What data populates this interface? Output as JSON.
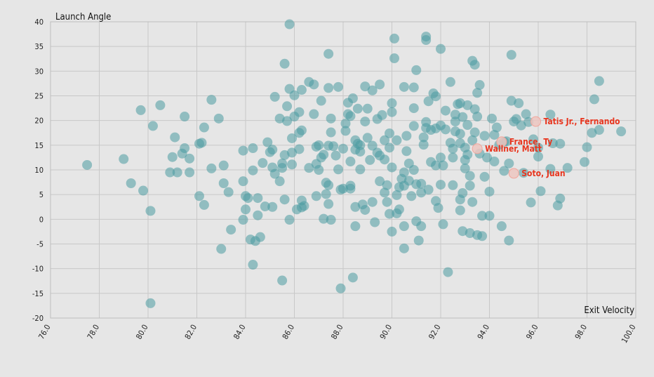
{
  "chart_data": {
    "type": "scatter",
    "xlabel": "Exit Velocity",
    "ylabel": "Launch Angle",
    "xlim": [
      76,
      100
    ],
    "ylim": [
      -20,
      40
    ],
    "xticks": [
      "76.0",
      "78.0",
      "80.0",
      "82.0",
      "84.0",
      "86.0",
      "88.0",
      "90.0",
      "92.0",
      "94.0",
      "96.0",
      "98.0",
      "100.0"
    ],
    "yticks": [
      "40",
      "35",
      "30",
      "25",
      "20",
      "15",
      "10",
      "5",
      "0",
      "-5",
      "-10",
      "-15",
      "-20"
    ],
    "grid": true,
    "colors": {
      "points": "#4a9aa0",
      "highlight": "#e8351e",
      "highlight_fill": "#ecc5c0"
    },
    "highlighted": [
      {
        "name": "Tatis Jr., Fernando",
        "x": 95.9,
        "y": 19.8
      },
      {
        "name": "France, Ty",
        "x": 94.5,
        "y": 15.7
      },
      {
        "name": "Wallner, Matt",
        "x": 93.5,
        "y": 14.3
      },
      {
        "name": "Soto, Juan",
        "x": 95.0,
        "y": 9.3
      }
    ],
    "points": [
      [
        77.5,
        11.0
      ],
      [
        79.0,
        12.2
      ],
      [
        79.3,
        7.3
      ],
      [
        79.7,
        22.1
      ],
      [
        79.8,
        5.8
      ],
      [
        80.1,
        1.7
      ],
      [
        80.1,
        -17.0
      ],
      [
        80.2,
        18.9
      ],
      [
        80.5,
        23.1
      ],
      [
        80.9,
        9.5
      ],
      [
        81.0,
        12.6
      ],
      [
        81.1,
        16.6
      ],
      [
        81.2,
        9.5
      ],
      [
        81.4,
        13.3
      ],
      [
        81.5,
        14.4
      ],
      [
        81.5,
        20.8
      ],
      [
        81.7,
        12.3
      ],
      [
        81.7,
        9.5
      ],
      [
        82.1,
        15.3
      ],
      [
        82.1,
        4.7
      ],
      [
        82.2,
        15.5
      ],
      [
        82.3,
        18.6
      ],
      [
        82.3,
        2.9
      ],
      [
        82.6,
        24.2
      ],
      [
        82.6,
        10.3
      ],
      [
        82.9,
        20.4
      ],
      [
        83.0,
        -6.0
      ],
      [
        83.1,
        10.9
      ],
      [
        83.1,
        7.3
      ],
      [
        83.3,
        5.5
      ],
      [
        83.4,
        -2.1
      ],
      [
        83.9,
        13.9
      ],
      [
        83.9,
        7.7
      ],
      [
        83.9,
        -0.1
      ],
      [
        84.0,
        4.7
      ],
      [
        84.0,
        2.0
      ],
      [
        84.1,
        4.3
      ],
      [
        84.2,
        -4.1
      ],
      [
        84.3,
        14.4
      ],
      [
        84.3,
        9.9
      ],
      [
        84.3,
        -9.2
      ],
      [
        84.4,
        -4.4
      ],
      [
        84.5,
        0.8
      ],
      [
        84.5,
        4.3
      ],
      [
        84.6,
        -3.6
      ],
      [
        84.7,
        11.4
      ],
      [
        84.8,
        2.6
      ],
      [
        84.9,
        15.6
      ],
      [
        85.0,
        13.6
      ],
      [
        85.1,
        14.1
      ],
      [
        85.1,
        2.5
      ],
      [
        85.1,
        10.5
      ],
      [
        85.2,
        24.8
      ],
      [
        85.2,
        9.2
      ],
      [
        85.4,
        20.4
      ],
      [
        85.4,
        7.7
      ],
      [
        85.5,
        11.3
      ],
      [
        85.5,
        10.4
      ],
      [
        85.5,
        -12.4
      ],
      [
        85.6,
        31.5
      ],
      [
        85.6,
        13.0
      ],
      [
        85.6,
        4.0
      ],
      [
        85.7,
        22.9
      ],
      [
        85.7,
        19.9
      ],
      [
        85.8,
        39.5
      ],
      [
        85.8,
        26.4
      ],
      [
        85.8,
        -0.1
      ],
      [
        85.9,
        16.4
      ],
      [
        85.9,
        13.5
      ],
      [
        85.9,
        11.1
      ],
      [
        86.0,
        25.1
      ],
      [
        86.0,
        20.8
      ],
      [
        86.1,
        2.0
      ],
      [
        86.2,
        21.7
      ],
      [
        86.2,
        17.5
      ],
      [
        86.2,
        14.2
      ],
      [
        86.3,
        26.2
      ],
      [
        86.3,
        18.0
      ],
      [
        86.3,
        3.8
      ],
      [
        86.3,
        2.4
      ],
      [
        86.4,
        2.7
      ],
      [
        86.6,
        10.4
      ],
      [
        86.6,
        27.8
      ],
      [
        86.8,
        27.3
      ],
      [
        86.8,
        21.3
      ],
      [
        86.9,
        14.7
      ],
      [
        86.9,
        11.2
      ],
      [
        86.9,
        4.7
      ],
      [
        87.0,
        10.0
      ],
      [
        87.0,
        15.0
      ],
      [
        87.1,
        12.5
      ],
      [
        87.1,
        24.0
      ],
      [
        87.2,
        13.1
      ],
      [
        87.2,
        0.1
      ],
      [
        87.3,
        7.4
      ],
      [
        87.3,
        5.1
      ],
      [
        87.4,
        26.6
      ],
      [
        87.4,
        33.5
      ],
      [
        87.4,
        14.9
      ],
      [
        87.4,
        6.9
      ],
      [
        87.4,
        3.1
      ],
      [
        87.5,
        20.4
      ],
      [
        87.5,
        17.6
      ],
      [
        87.5,
        -0.1
      ],
      [
        87.6,
        14.8
      ],
      [
        87.7,
        12.9
      ],
      [
        87.8,
        26.8
      ],
      [
        87.8,
        10.1
      ],
      [
        87.9,
        6.0
      ],
      [
        87.9,
        -14.0
      ],
      [
        88.0,
        14.3
      ],
      [
        88.0,
        6.2
      ],
      [
        88.1,
        19.4
      ],
      [
        88.1,
        17.9
      ],
      [
        88.2,
        23.6
      ],
      [
        88.2,
        21.3
      ],
      [
        88.3,
        20.9
      ],
      [
        88.3,
        11.7
      ],
      [
        88.3,
        6.2
      ],
      [
        88.3,
        6.8
      ],
      [
        88.4,
        24.5
      ],
      [
        88.4,
        -11.8
      ],
      [
        88.5,
        14.1
      ],
      [
        88.5,
        16.0
      ],
      [
        88.5,
        -1.4
      ],
      [
        88.5,
        2.5
      ],
      [
        88.6,
        22.4
      ],
      [
        88.6,
        15.3
      ],
      [
        88.7,
        13.7
      ],
      [
        88.7,
        15.0
      ],
      [
        88.7,
        10.1
      ],
      [
        88.8,
        3.0
      ],
      [
        88.9,
        19.8
      ],
      [
        88.9,
        26.9
      ],
      [
        88.9,
        1.9
      ],
      [
        89.0,
        22.4
      ],
      [
        89.0,
        16.5
      ],
      [
        89.1,
        12.0
      ],
      [
        89.2,
        26.1
      ],
      [
        89.2,
        14.9
      ],
      [
        89.2,
        3.5
      ],
      [
        89.3,
        -0.6
      ],
      [
        89.4,
        20.3
      ],
      [
        89.4,
        13.5
      ],
      [
        89.5,
        27.3
      ],
      [
        89.5,
        12.9
      ],
      [
        89.5,
        7.7
      ],
      [
        89.6,
        21.1
      ],
      [
        89.7,
        16.0
      ],
      [
        89.7,
        12.1
      ],
      [
        89.7,
        5.4
      ],
      [
        89.8,
        3.5
      ],
      [
        89.8,
        6.9
      ],
      [
        89.9,
        1.1
      ],
      [
        89.9,
        17.4
      ],
      [
        89.9,
        14.5
      ],
      [
        90.0,
        -2.5
      ],
      [
        90.0,
        21.7
      ],
      [
        90.0,
        23.5
      ],
      [
        90.0,
        10.5
      ],
      [
        90.1,
        32.6
      ],
      [
        90.1,
        36.6
      ],
      [
        90.2,
        4.9
      ],
      [
        90.2,
        1.2
      ],
      [
        90.2,
        16.0
      ],
      [
        90.3,
        2.0
      ],
      [
        90.3,
        6.5
      ],
      [
        90.4,
        8.2
      ],
      [
        90.5,
        6.8
      ],
      [
        90.5,
        -1.4
      ],
      [
        90.5,
        -5.9
      ],
      [
        90.5,
        9.5
      ],
      [
        90.5,
        26.8
      ],
      [
        90.6,
        16.9
      ],
      [
        90.6,
        13.8
      ],
      [
        90.7,
        11.3
      ],
      [
        90.7,
        7.8
      ],
      [
        90.8,
        4.7
      ],
      [
        90.9,
        10.0
      ],
      [
        90.9,
        26.7
      ],
      [
        90.9,
        22.5
      ],
      [
        90.9,
        18.9
      ],
      [
        91.0,
        7.1
      ],
      [
        91.0,
        -0.4
      ],
      [
        91.0,
        30.2
      ],
      [
        91.1,
        -4.3
      ],
      [
        91.2,
        -1.4
      ],
      [
        91.2,
        5.4
      ],
      [
        91.2,
        7.2
      ],
      [
        91.3,
        15.1
      ],
      [
        91.3,
        16.6
      ],
      [
        91.4,
        19.7
      ],
      [
        91.4,
        18.5
      ],
      [
        91.4,
        37.0
      ],
      [
        91.4,
        36.3
      ],
      [
        91.5,
        23.9
      ],
      [
        91.5,
        6.0
      ],
      [
        91.6,
        11.6
      ],
      [
        91.6,
        18.1
      ],
      [
        91.7,
        25.5
      ],
      [
        91.8,
        24.9
      ],
      [
        91.8,
        18.4
      ],
      [
        91.8,
        10.9
      ],
      [
        91.8,
        3.7
      ],
      [
        91.9,
        2.3
      ],
      [
        92.0,
        34.5
      ],
      [
        92.0,
        19.0
      ],
      [
        92.0,
        12.5
      ],
      [
        92.0,
        7.0
      ],
      [
        92.1,
        -1.0
      ],
      [
        92.1,
        10.9
      ],
      [
        92.2,
        18.2
      ],
      [
        92.2,
        22.0
      ],
      [
        92.3,
        -10.7
      ],
      [
        92.4,
        27.8
      ],
      [
        92.4,
        15.5
      ],
      [
        92.5,
        12.5
      ],
      [
        92.5,
        14.3
      ],
      [
        92.5,
        6.9
      ],
      [
        92.6,
        21.2
      ],
      [
        92.6,
        19.8
      ],
      [
        92.6,
        17.8
      ],
      [
        92.7,
        23.3
      ],
      [
        92.8,
        1.8
      ],
      [
        92.8,
        23.5
      ],
      [
        92.8,
        17.3
      ],
      [
        92.8,
        15.4
      ],
      [
        92.8,
        4.0
      ],
      [
        92.9,
        -2.4
      ],
      [
        92.9,
        5.3
      ],
      [
        92.9,
        20.7
      ],
      [
        93.0,
        14.5
      ],
      [
        93.0,
        12.0
      ],
      [
        93.0,
        10.3
      ],
      [
        93.1,
        13.1
      ],
      [
        93.1,
        23.1
      ],
      [
        93.1,
        19.1
      ],
      [
        93.2,
        8.8
      ],
      [
        93.2,
        6.8
      ],
      [
        93.2,
        -2.8
      ],
      [
        93.3,
        16.0
      ],
      [
        93.3,
        32.1
      ],
      [
        93.3,
        3.5
      ],
      [
        93.4,
        31.3
      ],
      [
        93.4,
        22.3
      ],
      [
        93.4,
        17.6
      ],
      [
        93.5,
        20.8
      ],
      [
        93.5,
        -3.2
      ],
      [
        93.5,
        25.6
      ],
      [
        93.6,
        27.2
      ],
      [
        93.6,
        13.3
      ],
      [
        93.7,
        0.7
      ],
      [
        93.7,
        -3.4
      ],
      [
        93.8,
        8.6
      ],
      [
        93.8,
        16.9
      ],
      [
        93.9,
        12.5
      ],
      [
        94.0,
        5.6
      ],
      [
        94.0,
        0.7
      ],
      [
        94.1,
        20.4
      ],
      [
        94.2,
        17.1
      ],
      [
        94.2,
        11.7
      ],
      [
        94.3,
        18.6
      ],
      [
        94.4,
        15.1
      ],
      [
        94.5,
        -1.4
      ],
      [
        94.6,
        9.8
      ],
      [
        94.6,
        15.7
      ],
      [
        94.7,
        15.8
      ],
      [
        94.8,
        -4.3
      ],
      [
        94.8,
        11.3
      ],
      [
        94.9,
        24.0
      ],
      [
        94.9,
        33.3
      ],
      [
        95.0,
        19.8
      ],
      [
        95.1,
        20.3
      ],
      [
        95.2,
        23.5
      ],
      [
        95.3,
        19.0
      ],
      [
        95.4,
        9.4
      ],
      [
        95.5,
        21.3
      ],
      [
        95.6,
        19.7
      ],
      [
        95.7,
        3.4
      ],
      [
        95.8,
        16.2
      ],
      [
        96.0,
        12.7
      ],
      [
        96.0,
        14.5
      ],
      [
        96.1,
        5.7
      ],
      [
        96.5,
        21.2
      ],
      [
        96.5,
        10.2
      ],
      [
        96.6,
        15.4
      ],
      [
        96.8,
        2.8
      ],
      [
        96.9,
        4.2
      ],
      [
        96.9,
        15.3
      ],
      [
        97.2,
        10.4
      ],
      [
        97.9,
        11.6
      ],
      [
        98.0,
        14.6
      ],
      [
        98.2,
        17.5
      ],
      [
        98.3,
        24.3
      ],
      [
        98.5,
        18.1
      ],
      [
        98.5,
        28.0
      ],
      [
        99.4,
        17.8
      ]
    ]
  }
}
